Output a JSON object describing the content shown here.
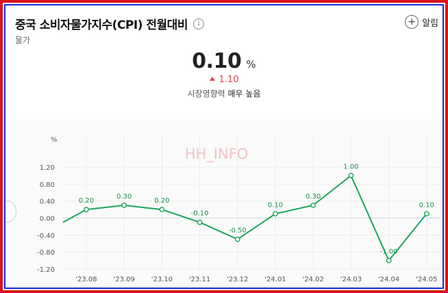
{
  "header": {
    "title": "중국 소비자물가지수(CPI) 전월대비",
    "info_icon": "info-icon",
    "subtitle": "물가",
    "alarm_label": "알림"
  },
  "summary": {
    "value": "0.10",
    "unit": "%",
    "change": "1.10",
    "impact_label": "시장영향력",
    "impact_value": "매우 높음"
  },
  "colors": {
    "frame_red": "#d9121b",
    "frame_blue": "#1a2bd6",
    "line": "#1aa55a",
    "up": "#e8414a"
  },
  "chart_data": {
    "type": "line",
    "unit_label": "%",
    "watermark": "HH_INFO",
    "categories": [
      "'23.08",
      "'23.09",
      "'23.10",
      "'23.11",
      "'23.12",
      "'24.01",
      "'24.02",
      "'24.03",
      "'24.04",
      "'24.05"
    ],
    "values": [
      0.2,
      0.3,
      0.2,
      -0.1,
      -0.5,
      0.1,
      0.3,
      1.0,
      -1.0,
      0.1
    ],
    "value_labels": [
      "0.20",
      "0.30",
      "0.20",
      "-0.10",
      "-0.50",
      "0.10",
      "0.30",
      "1.00",
      "-1.00",
      "0.10"
    ],
    "lead_in_value": -0.1,
    "yticks": [
      "1.20",
      "0.80",
      "0.40",
      "0.00",
      "-0.40",
      "-0.80",
      "-1.20"
    ],
    "ytick_values": [
      1.2,
      0.8,
      0.4,
      0.0,
      -0.4,
      -0.8,
      -1.2
    ],
    "ylim": [
      -1.2,
      1.2
    ],
    "grid": true
  }
}
